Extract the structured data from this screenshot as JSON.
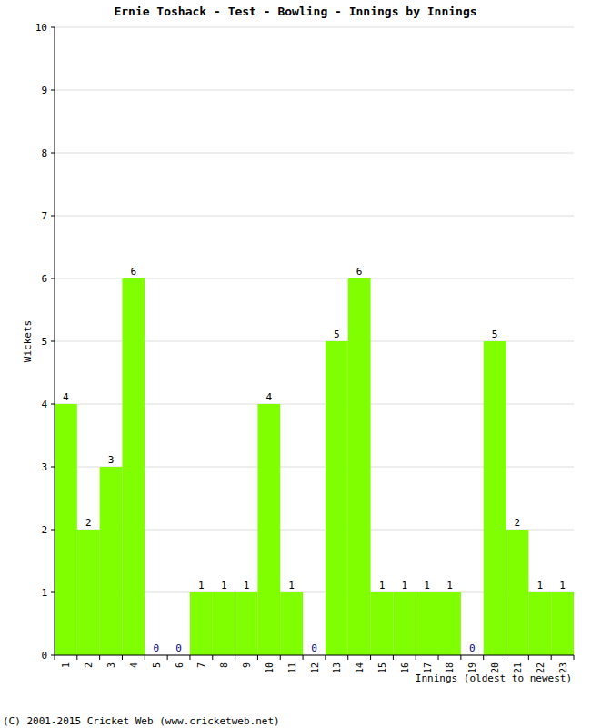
{
  "chart_data": {
    "type": "bar",
    "title": "Ernie Toshack - Test - Bowling - Innings by Innings",
    "x_label": "Innings (oldest to newest)",
    "y_label": "Wickets",
    "source": "(C) 2001-2015 Cricket Web (www.cricketweb.net)",
    "categories": [
      "1",
      "2",
      "3",
      "4",
      "5",
      "6",
      "7",
      "8",
      "9",
      "10",
      "11",
      "12",
      "13",
      "14",
      "15",
      "16",
      "17",
      "18",
      "19",
      "20",
      "21",
      "22",
      "23"
    ],
    "values": [
      4,
      2,
      3,
      6,
      0,
      0,
      1,
      1,
      1,
      4,
      1,
      0,
      5,
      6,
      1,
      1,
      1,
      1,
      0,
      5,
      2,
      1,
      1
    ],
    "color": "#80ff00",
    "ylim": [
      0,
      10
    ],
    "yticks": [
      0,
      1,
      2,
      3,
      4,
      5,
      6,
      7,
      8,
      9,
      10
    ],
    "grid": true,
    "data_labels": true
  }
}
